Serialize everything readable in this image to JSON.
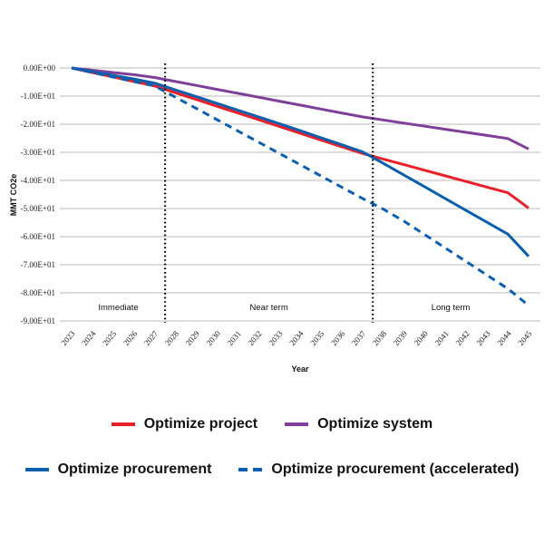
{
  "chart_data": {
    "type": "line",
    "title": "",
    "xlabel": "Year",
    "ylabel": "MMT CO2e",
    "x": [
      2023,
      2024,
      2025,
      2026,
      2027,
      2028,
      2029,
      2030,
      2031,
      2032,
      2033,
      2034,
      2035,
      2036,
      2037,
      2038,
      2039,
      2040,
      2041,
      2042,
      2043,
      2044,
      2045
    ],
    "ylim": [
      -90,
      0
    ],
    "yticks": [
      0,
      -10,
      -20,
      -30,
      -40,
      -50,
      -60,
      -70,
      -80,
      -90
    ],
    "ytick_labels": [
      "0.00E+00",
      "-1.00E+01",
      "-2.00E+01",
      "-3.00E+01",
      "-4.00E+01",
      "-5.00E+01",
      "-6.00E+01",
      "-7.00E+01",
      "-8.00E+01",
      "-9.00E+01"
    ],
    "grid": true,
    "series": [
      {
        "name": "Optimize project",
        "color": "#e8202a",
        "style": "solid",
        "values": [
          0,
          -1.6,
          -3.2,
          -4.8,
          -6.4,
          -8.8,
          -11.2,
          -13.6,
          -16.0,
          -18.4,
          -20.8,
          -23.2,
          -25.6,
          -28.0,
          -30.4,
          -32.4,
          -34.4,
          -36.4,
          -38.4,
          -40.4,
          -42.4,
          -44.4,
          -49.8
        ]
      },
      {
        "name": "Optimize system",
        "color": "#7e3f98",
        "style": "solid",
        "values": [
          0,
          -0.8,
          -1.6,
          -2.4,
          -3.4,
          -4.8,
          -6.2,
          -7.6,
          -9.0,
          -10.4,
          -11.8,
          -13.2,
          -14.6,
          -16.0,
          -17.4,
          -18.5,
          -19.6,
          -20.7,
          -21.8,
          -22.9,
          -24.0,
          -25.1,
          -28.8
        ]
      },
      {
        "name": "Optimize procurement",
        "color": "#0c5fad",
        "style": "solid",
        "values": [
          0,
          -1.3,
          -2.6,
          -3.9,
          -5.4,
          -7.8,
          -10.2,
          -12.6,
          -15.0,
          -17.4,
          -19.8,
          -22.3,
          -24.8,
          -27.3,
          -29.8,
          -33.9,
          -38.1,
          -42.3,
          -46.5,
          -50.7,
          -54.9,
          -59.1,
          -67.0
        ]
      },
      {
        "name": "Optimize procurement (accelerated)",
        "color": "#0c5fad",
        "style": "dashed",
        "values": [
          0,
          -1.6,
          -3.2,
          -4.8,
          -6.4,
          -10.4,
          -14.4,
          -18.4,
          -22.4,
          -26.4,
          -30.4,
          -34.4,
          -38.4,
          -42.4,
          -46.4,
          -50.2,
          -54.5,
          -59.3,
          -64.1,
          -68.9,
          -73.7,
          -78.5,
          -84.5
        ]
      }
    ],
    "regions": [
      {
        "label": "Immediate",
        "from": 2023,
        "to": 2027.5
      },
      {
        "label": "Near term",
        "from": 2027.5,
        "to": 2037.5
      },
      {
        "label": "Long term",
        "from": 2037.5,
        "to": 2045
      }
    ],
    "dividers": [
      2027.5,
      2037.5
    ],
    "legend": {
      "row1": [
        {
          "label": "Optimize project",
          "color": "#e8202a",
          "style": "solid"
        },
        {
          "label": "Optimize system",
          "color": "#7e3f98",
          "style": "solid"
        }
      ],
      "row2": [
        {
          "label": "Optimize procurement",
          "color": "#0c5fad",
          "style": "solid"
        },
        {
          "label": "Optimize procurement (accelerated)",
          "color": "#0c5fad",
          "style": "dashed"
        }
      ]
    }
  }
}
